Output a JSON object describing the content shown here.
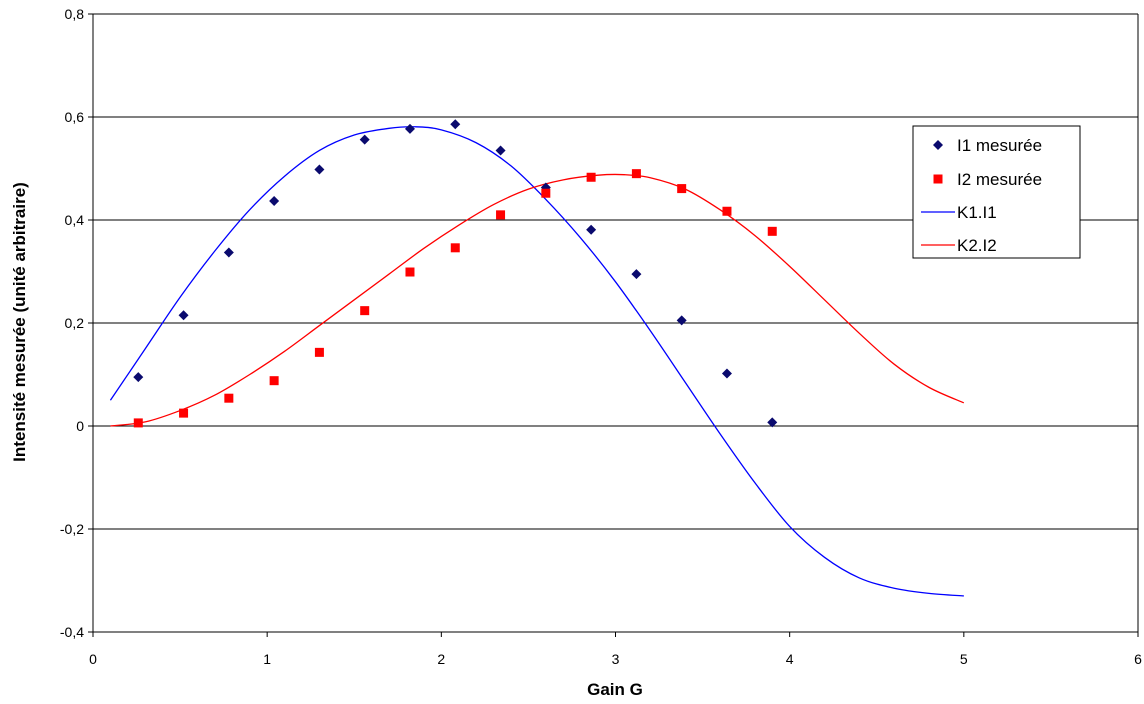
{
  "chart_data": {
    "type": "scatter",
    "title": "",
    "xlabel": "Gain G",
    "ylabel": "Intensité mesurée (unité arbitraire)",
    "xlim": [
      0,
      6
    ],
    "ylim": [
      -0.4,
      0.8
    ],
    "x_ticks": [
      "0",
      "1",
      "2",
      "3",
      "4",
      "5",
      "6"
    ],
    "y_ticks": [
      "-0,4",
      "-0,2",
      "0",
      "0,2",
      "0,4",
      "0,6",
      "0,8"
    ],
    "grid": "horizontal",
    "legend_position": "right",
    "series": [
      {
        "name": "I1 mesurée",
        "kind": "markers",
        "marker": "diamond",
        "color": "#0a0a6e",
        "x": [
          0.26,
          0.52,
          0.78,
          1.04,
          1.3,
          1.56,
          1.82,
          2.08,
          2.34,
          2.6,
          2.86,
          3.12,
          3.38,
          3.64,
          3.9
        ],
        "y": [
          0.095,
          0.215,
          0.337,
          0.437,
          0.498,
          0.556,
          0.577,
          0.586,
          0.535,
          0.463,
          0.381,
          0.295,
          0.205,
          0.102,
          0.007
        ]
      },
      {
        "name": "I2 mesurée",
        "kind": "markers",
        "marker": "square",
        "color": "#ff0000",
        "x": [
          0.26,
          0.52,
          0.78,
          1.04,
          1.3,
          1.56,
          1.82,
          2.08,
          2.34,
          2.6,
          2.86,
          3.12,
          3.38,
          3.64,
          3.9
        ],
        "y": [
          0.006,
          0.025,
          0.054,
          0.088,
          0.143,
          0.224,
          0.299,
          0.346,
          0.41,
          0.452,
          0.483,
          0.49,
          0.461,
          0.417,
          0.378
        ]
      },
      {
        "name": "K1.I1",
        "kind": "line",
        "color": "#0000ff",
        "x": [
          0.1,
          0.3,
          0.5,
          0.7,
          0.9,
          1.1,
          1.3,
          1.5,
          1.7,
          1.85,
          2.0,
          2.2,
          2.4,
          2.6,
          2.8,
          3.0,
          3.2,
          3.4,
          3.6,
          3.8,
          4.0,
          4.2,
          4.4,
          4.6,
          4.8,
          5.0
        ],
        "y": [
          0.05,
          0.15,
          0.25,
          0.34,
          0.42,
          0.485,
          0.535,
          0.565,
          0.578,
          0.581,
          0.575,
          0.55,
          0.505,
          0.44,
          0.365,
          0.28,
          0.185,
          0.085,
          -0.015,
          -0.11,
          -0.195,
          -0.255,
          -0.295,
          -0.315,
          -0.325,
          -0.33
        ]
      },
      {
        "name": "K2.I2",
        "kind": "line",
        "color": "#ff0000",
        "x": [
          0.1,
          0.3,
          0.5,
          0.7,
          0.9,
          1.1,
          1.3,
          1.5,
          1.7,
          1.9,
          2.1,
          2.3,
          2.5,
          2.7,
          2.9,
          3.05,
          3.2,
          3.4,
          3.6,
          3.8,
          4.0,
          4.2,
          4.4,
          4.6,
          4.8,
          5.0
        ],
        "y": [
          0.0,
          0.008,
          0.03,
          0.06,
          0.1,
          0.145,
          0.195,
          0.245,
          0.295,
          0.345,
          0.39,
          0.43,
          0.46,
          0.478,
          0.487,
          0.488,
          0.482,
          0.46,
          0.42,
          0.37,
          0.31,
          0.245,
          0.18,
          0.12,
          0.075,
          0.045
        ]
      }
    ]
  }
}
